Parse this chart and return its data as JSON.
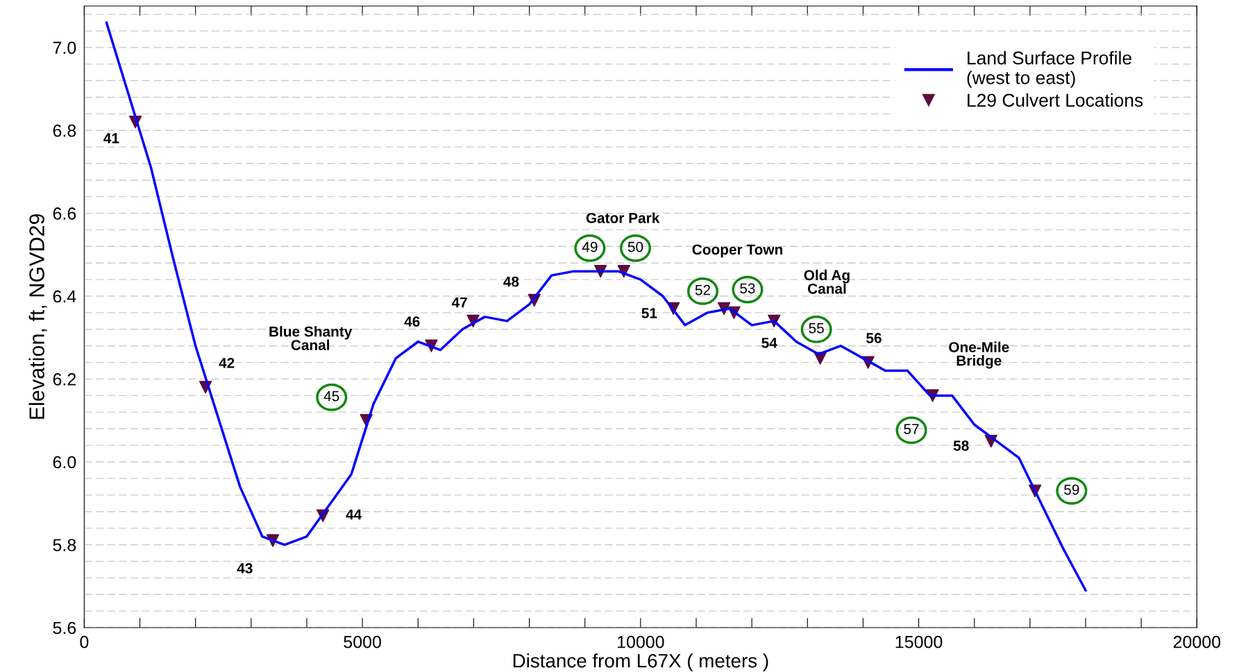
{
  "chart_data": {
    "type": "line",
    "xlabel": "Distance from L67X ( meters )",
    "ylabel": "Elevation, ft, NGVD29",
    "xlim": [
      0,
      20000
    ],
    "ylim": [
      5.6,
      7.1
    ],
    "xticks": [
      0,
      {
        "value": 1000,
        "label": null
      },
      {
        "value": 2000,
        "label": null
      },
      {
        "value": 3000,
        "label": null
      },
      {
        "value": 4000,
        "label": null
      },
      5000,
      {
        "value": 6000,
        "label": null
      },
      {
        "value": 7000,
        "label": null
      },
      {
        "value": 8000,
        "label": null
      },
      {
        "value": 9000,
        "label": null
      },
      10000,
      {
        "value": 11000,
        "label": null
      },
      {
        "value": 12000,
        "label": null
      },
      {
        "value": 13000,
        "label": null
      },
      {
        "value": 14000,
        "label": null
      },
      15000,
      {
        "value": 16000,
        "label": null
      },
      {
        "value": 17000,
        "label": null
      },
      {
        "value": 18000,
        "label": null
      },
      {
        "value": 19000,
        "label": null
      },
      20000
    ],
    "yticks": [
      {
        "value": 5.6,
        "label": "5.6"
      },
      {
        "value": 5.64,
        "label": null
      },
      {
        "value": 5.68,
        "label": null
      },
      {
        "value": 5.72,
        "label": null
      },
      {
        "value": 5.76,
        "label": null
      },
      {
        "value": 5.8,
        "label": "5.8"
      },
      {
        "value": 5.84,
        "label": null
      },
      {
        "value": 5.88,
        "label": null
      },
      {
        "value": 5.92,
        "label": null
      },
      {
        "value": 5.96,
        "label": null
      },
      {
        "value": 6.0,
        "label": "6.0"
      },
      {
        "value": 6.04,
        "label": null
      },
      {
        "value": 6.08,
        "label": null
      },
      {
        "value": 6.12,
        "label": null
      },
      {
        "value": 6.16,
        "label": null
      },
      {
        "value": 6.2,
        "label": "6.2"
      },
      {
        "value": 6.24,
        "label": null
      },
      {
        "value": 6.28,
        "label": null
      },
      {
        "value": 6.32,
        "label": null
      },
      {
        "value": 6.36,
        "label": null
      },
      {
        "value": 6.4,
        "label": "6.4"
      },
      {
        "value": 6.44,
        "label": null
      },
      {
        "value": 6.48,
        "label": null
      },
      {
        "value": 6.52,
        "label": null
      },
      {
        "value": 6.56,
        "label": null
      },
      {
        "value": 6.6,
        "label": "6.6"
      },
      {
        "value": 6.64,
        "label": null
      },
      {
        "value": 6.68,
        "label": null
      },
      {
        "value": 6.72,
        "label": null
      },
      {
        "value": 6.76,
        "label": null
      },
      {
        "value": 6.8,
        "label": "6.8"
      },
      {
        "value": 6.84,
        "label": null
      },
      {
        "value": 6.88,
        "label": null
      },
      {
        "value": 6.92,
        "label": null
      },
      {
        "value": 6.96,
        "label": null
      },
      {
        "value": 7.0,
        "label": "7.0"
      },
      {
        "value": 7.04,
        "label": null
      },
      {
        "value": 7.08,
        "label": null
      }
    ],
    "grid": "y",
    "legend": "top right",
    "series": [
      {
        "name": "Land Surface Profile\n(west to east)",
        "color": "#0000ff",
        "marker": "none",
        "line_style": "solid",
        "x": [
          400,
          1200,
          1600,
          2000,
          2800,
          3200,
          3600,
          4000,
          4800,
          5200,
          5600,
          6000,
          6400,
          6800,
          7200,
          7600,
          8000,
          8400,
          8800,
          9200,
          9600,
          10000,
          10400,
          10800,
          11200,
          11600,
          12000,
          12400,
          12800,
          13200,
          13600,
          14000,
          14400,
          14800,
          15200,
          15600,
          16000,
          16400,
          16800,
          17600,
          18000
        ],
        "values": [
          7.06,
          6.71,
          6.49,
          6.28,
          5.94,
          5.82,
          5.8,
          5.82,
          5.97,
          6.14,
          6.25,
          6.29,
          6.27,
          6.32,
          6.35,
          6.34,
          6.38,
          6.45,
          6.46,
          6.46,
          6.46,
          6.44,
          6.4,
          6.33,
          6.36,
          6.37,
          6.33,
          6.34,
          6.29,
          6.26,
          6.28,
          6.25,
          6.22,
          6.22,
          6.16,
          6.16,
          6.09,
          6.05,
          6.01,
          5.79,
          5.69
        ]
      },
      {
        "name": "L29 Culvert Locations",
        "type": "scatter",
        "color": "#5e0a3e",
        "marker": "triangle",
        "x": [
          920,
          2180,
          3390,
          4290,
          5070,
          6240,
          6990,
          8090,
          9280,
          9700,
          10590,
          11500,
          11680,
          12400,
          13230,
          14090,
          15250,
          16300,
          17090
        ],
        "values": [
          6.82,
          6.18,
          5.81,
          5.87,
          6.1,
          6.28,
          6.34,
          6.39,
          6.46,
          6.46,
          6.37,
          6.37,
          6.36,
          6.34,
          6.25,
          6.24,
          6.16,
          6.05,
          5.93
        ]
      }
    ],
    "annotations": [
      "41",
      "42",
      "43",
      "44",
      "45",
      "46",
      "47",
      "48",
      "49",
      "50",
      "51",
      "52",
      "53",
      "54",
      "55",
      "56",
      "57",
      "58",
      "59",
      "Blue Shanty\nCanal",
      "Gator Park",
      "Cooper Town",
      "Old Ag\nCanal",
      "One-Mile\nBridge"
    ]
  }
}
